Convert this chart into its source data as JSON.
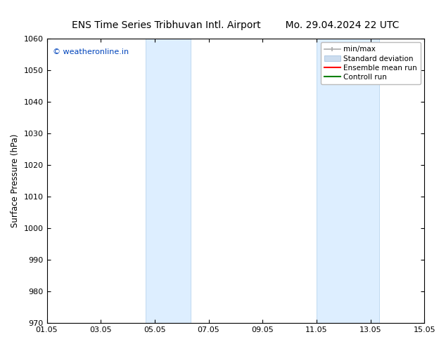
{
  "title_left": "ENS Time Series Tribhuvan Intl. Airport",
  "title_right": "Mo. 29.04.2024 22 UTC",
  "ylabel": "Surface Pressure (hPa)",
  "ylim": [
    970,
    1060
  ],
  "ytick_step": 10,
  "xtick_labels": [
    "01.05",
    "03.05",
    "05.05",
    "07.05",
    "09.05",
    "11.05",
    "13.05",
    "15.05"
  ],
  "xtick_positions_days": [
    0,
    2,
    4,
    6,
    8,
    10,
    12,
    14
  ],
  "shaded_bands": [
    {
      "xstart_days": 3.67,
      "xend_days": 5.33
    },
    {
      "xstart_days": 10.0,
      "xend_days": 12.33
    }
  ],
  "band_color": "#ddeeff",
  "band_edge_color": "#b8d4ee",
  "watermark_text": "© weatheronline.in",
  "watermark_color": "#0044bb",
  "legend_items": [
    {
      "label": "min/max",
      "color": "#aaaaaa"
    },
    {
      "label": "Standard deviation",
      "color": "#ccddef"
    },
    {
      "label": "Ensemble mean run",
      "color": "red"
    },
    {
      "label": "Controll run",
      "color": "green"
    }
  ],
  "bg_color": "#ffffff",
  "plot_bg_color": "#ffffff",
  "border_color": "#000000",
  "title_fontsize": 10,
  "label_fontsize": 8.5,
  "tick_fontsize": 8,
  "legend_fontsize": 7.5
}
